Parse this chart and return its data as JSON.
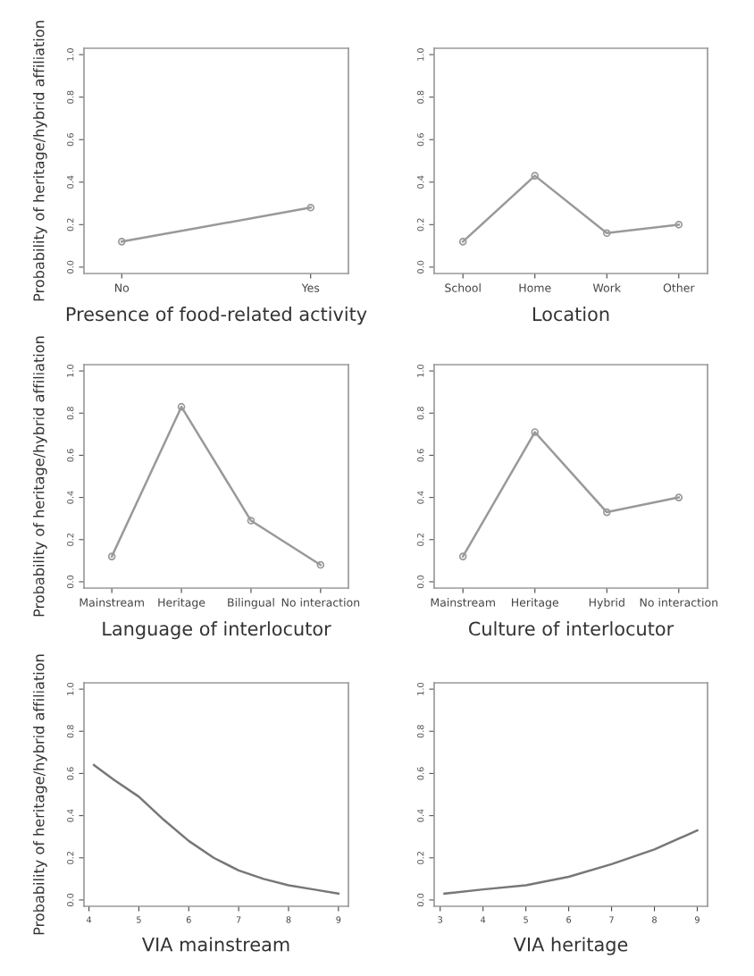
{
  "chart_data": [
    {
      "type": "line",
      "ylabel": "Probability of heritage/hybrid affiliation",
      "xlabel": "Presence of food-related activity",
      "categories": [
        "No",
        "Yes"
      ],
      "values": [
        0.12,
        0.28
      ],
      "color": "#999999",
      "marker": "circle",
      "ylim": [
        -0.03,
        1.03
      ],
      "yticks": [
        {
          "value": 0,
          "label": "0.0"
        },
        {
          "value": 0.2,
          "label": "0.2"
        },
        {
          "value": 0.4,
          "label": "0.4"
        },
        {
          "value": 0.6,
          "label": "0.6"
        },
        {
          "value": 0.8,
          "label": "0.8"
        },
        {
          "value": 1,
          "label": "1.0"
        }
      ]
    },
    {
      "type": "line",
      "xlabel": "Location",
      "categories": [
        "School",
        "Home",
        "Work",
        "Other"
      ],
      "values": [
        0.12,
        0.43,
        0.16,
        0.2
      ],
      "color": "#999999",
      "marker": "circle",
      "ylim": [
        -0.03,
        1.03
      ],
      "yticks": [
        {
          "value": 0,
          "label": "0.0"
        },
        {
          "value": 0.2,
          "label": "0.2"
        },
        {
          "value": 0.4,
          "label": "0.4"
        },
        {
          "value": 0.6,
          "label": "0.6"
        },
        {
          "value": 0.8,
          "label": "0.8"
        },
        {
          "value": 1,
          "label": "1.0"
        }
      ]
    },
    {
      "type": "line",
      "ylabel": "Probability of heritage/hybrid affiliation",
      "xlabel": "Language of interlocutor",
      "categories": [
        "Mainstream",
        "Heritage",
        "Bilingual",
        "No interaction"
      ],
      "values": [
        0.12,
        0.83,
        0.29,
        0.08
      ],
      "color": "#999999",
      "marker": "circle",
      "ylim": [
        -0.03,
        1.03
      ],
      "yticks": [
        {
          "value": 0,
          "label": "0.0"
        },
        {
          "value": 0.2,
          "label": "0.2"
        },
        {
          "value": 0.4,
          "label": "0.4"
        },
        {
          "value": 0.6,
          "label": "0.6"
        },
        {
          "value": 0.8,
          "label": "0.8"
        },
        {
          "value": 1,
          "label": "1.0"
        }
      ]
    },
    {
      "type": "line",
      "xlabel": "Culture of interlocutor",
      "categories": [
        "Mainstream",
        "Heritage",
        "Hybrid",
        "No interaction"
      ],
      "values": [
        0.12,
        0.71,
        0.33,
        0.4
      ],
      "color": "#999999",
      "marker": "circle",
      "ylim": [
        -0.03,
        1.03
      ],
      "yticks": [
        {
          "value": 0,
          "label": "0.0"
        },
        {
          "value": 0.2,
          "label": "0.2"
        },
        {
          "value": 0.4,
          "label": "0.4"
        },
        {
          "value": 0.6,
          "label": "0.6"
        },
        {
          "value": 0.8,
          "label": "0.8"
        },
        {
          "value": 1,
          "label": "1.0"
        }
      ]
    },
    {
      "type": "line",
      "ylabel": "Probability of heritage/hybrid affiliation",
      "xlabel": "VIA mainstream",
      "x": [
        4.1,
        4.5,
        5,
        5.5,
        6,
        6.5,
        7,
        7.5,
        8,
        8.5,
        9
      ],
      "values": [
        0.64,
        0.57,
        0.49,
        0.38,
        0.28,
        0.2,
        0.14,
        0.1,
        0.07,
        0.05,
        0.03
      ],
      "color": "#777777",
      "marker": "none",
      "xlim": [
        3.9,
        9.2
      ],
      "xticks": [
        4,
        5,
        6,
        7,
        8,
        9
      ],
      "ylim": [
        -0.03,
        1.03
      ],
      "yticks": [
        {
          "value": 0,
          "label": "0.0"
        },
        {
          "value": 0.2,
          "label": "0.2"
        },
        {
          "value": 0.4,
          "label": "0.4"
        },
        {
          "value": 0.6,
          "label": "0.6"
        },
        {
          "value": 0.8,
          "label": "0.8"
        },
        {
          "value": 1,
          "label": "1.0"
        }
      ]
    },
    {
      "type": "line",
      "xlabel": "VIA heritage",
      "x": [
        3.1,
        4,
        5,
        6,
        7,
        8,
        9
      ],
      "values": [
        0.03,
        0.05,
        0.07,
        0.11,
        0.17,
        0.24,
        0.33
      ],
      "color": "#777777",
      "marker": "none",
      "xlim": [
        2.86,
        9.24
      ],
      "xticks": [
        3,
        4,
        5,
        6,
        7,
        8,
        9
      ],
      "ylim": [
        -0.03,
        1.03
      ],
      "yticks": [
        {
          "value": 0,
          "label": "0.0"
        },
        {
          "value": 0.2,
          "label": "0.2"
        },
        {
          "value": 0.4,
          "label": "0.4"
        },
        {
          "value": 0.6,
          "label": "0.6"
        },
        {
          "value": 0.8,
          "label": "0.8"
        },
        {
          "value": 1,
          "label": "1.0"
        }
      ]
    }
  ]
}
